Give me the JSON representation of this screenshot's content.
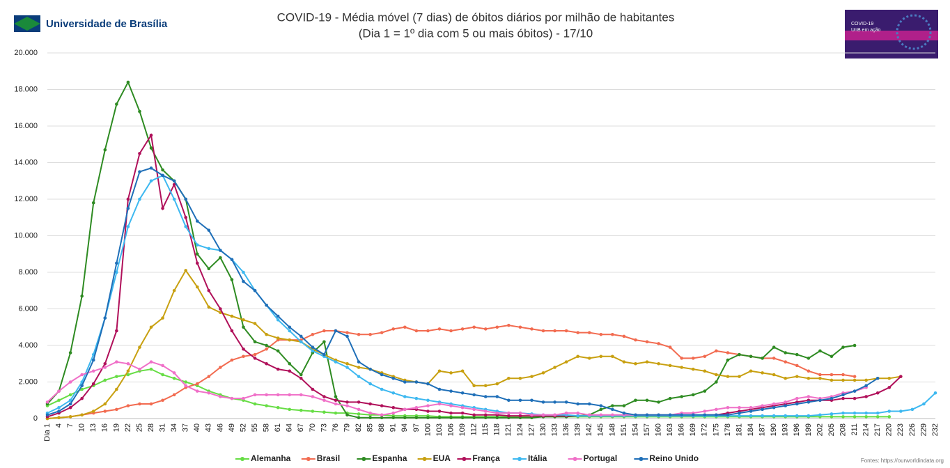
{
  "chart_data": {
    "type": "line",
    "title": "COVID-19 - Média móvel (7 dias) de óbitos diários por milhão de habitantes",
    "subtitle": "(Dia 1 = 1º dia com 5 ou mais óbitos) - 17/10",
    "logo_text": "Universidade de Brasília",
    "badge": [
      "COVID-19",
      "UnB em ação"
    ],
    "source": "Fontes: https://ourworldindata.org",
    "categories": [
      "Dia 1",
      "4",
      "7",
      "10",
      "13",
      "16",
      "19",
      "22",
      "25",
      "28",
      "31",
      "34",
      "37",
      "40",
      "43",
      "46",
      "49",
      "52",
      "55",
      "58",
      "61",
      "64",
      "67",
      "70",
      "73",
      "76",
      "79",
      "82",
      "85",
      "88",
      "91",
      "94",
      "97",
      "100",
      "103",
      "106",
      "109",
      "112",
      "115",
      "118",
      "121",
      "124",
      "127",
      "130",
      "133",
      "136",
      "139",
      "142",
      "145",
      "148",
      "151",
      "154",
      "157",
      "160",
      "163",
      "166",
      "169",
      "172",
      "175",
      "178",
      "181",
      "184",
      "187",
      "190",
      "193",
      "196",
      "199",
      "202",
      "205",
      "208",
      "211",
      "214",
      "217",
      "220",
      "223",
      "226",
      "229",
      "232"
    ],
    "ylim": [
      0,
      20000
    ],
    "yticks": [
      0,
      {
        "value": 2000,
        "label": "2.000"
      },
      {
        "value": 4000,
        "label": "4.000"
      },
      {
        "value": 6000,
        "label": "6.000"
      },
      {
        "value": 8000,
        "label": "8.000"
      },
      {
        "value": 10000,
        "label": "10.000"
      },
      {
        "value": 12000,
        "label": "12.000"
      },
      {
        "value": 14000,
        "label": "14.000"
      },
      {
        "value": 16000,
        "label": "16.000"
      },
      {
        "value": 18000,
        "label": "18.000"
      },
      {
        "value": 20000,
        "label": "20.000"
      }
    ],
    "grid": true,
    "legend": "bottom",
    "series": [
      {
        "name": "Alemanha",
        "color": "#66dd44",
        "values": [
          700,
          1000,
          1300,
          1600,
          1800,
          2100,
          2300,
          2400,
          2600,
          2700,
          2400,
          2200,
          2000,
          1800,
          1500,
          1300,
          1100,
          1000,
          800,
          700,
          600,
          500,
          450,
          400,
          350,
          300,
          300,
          250,
          200,
          200,
          150,
          150,
          150,
          150,
          100,
          100,
          100,
          100,
          100,
          100,
          100,
          100,
          100,
          100,
          100,
          100,
          100,
          100,
          100,
          100,
          100,
          100,
          100,
          100,
          100,
          100,
          100,
          100,
          100,
          100,
          100,
          100,
          100,
          100,
          100,
          100,
          100,
          100,
          100,
          100,
          100,
          100,
          100,
          100,
          null,
          null,
          null,
          null
        ]
      },
      {
        "name": "Brasil",
        "color": "#f26b50",
        "values": [
          0,
          50,
          100,
          200,
          300,
          400,
          500,
          700,
          800,
          800,
          1000,
          1300,
          1700,
          1900,
          2300,
          2800,
          3200,
          3400,
          3500,
          3800,
          4300,
          4300,
          4300,
          4600,
          4800,
          4800,
          4700,
          4600,
          4600,
          4700,
          4900,
          5000,
          4800,
          4800,
          4900,
          4800,
          4900,
          5000,
          4900,
          5000,
          5100,
          5000,
          4900,
          4800,
          4800,
          4800,
          4700,
          4700,
          4600,
          4600,
          4500,
          4300,
          4200,
          4100,
          3900,
          3300,
          3300,
          3400,
          3700,
          3600,
          3500,
          3400,
          3300,
          3300,
          3100,
          2900,
          2600,
          2400,
          2400,
          2400,
          2300,
          null,
          null,
          null,
          null,
          null,
          null,
          null
        ]
      },
      {
        "name": "Espanha",
        "color": "#2e8b22",
        "values": [
          800,
          1500,
          3600,
          6700,
          11800,
          14700,
          17200,
          18400,
          16800,
          14800,
          13600,
          13000,
          12000,
          9000,
          8200,
          8800,
          7600,
          5000,
          4200,
          4000,
          3700,
          3000,
          2400,
          3600,
          4200,
          1200,
          200,
          50,
          50,
          50,
          50,
          50,
          50,
          50,
          50,
          50,
          50,
          50,
          50,
          50,
          50,
          50,
          50,
          100,
          100,
          100,
          150,
          200,
          500,
          700,
          700,
          1000,
          1000,
          900,
          1100,
          1200,
          1300,
          1500,
          2000,
          3200,
          3500,
          3400,
          3300,
          3900,
          3600,
          3500,
          3300,
          3700,
          3400,
          3900,
          4000,
          null,
          null,
          null,
          null,
          null,
          null,
          null
        ]
      },
      {
        "name": "EUA",
        "color": "#c8a010",
        "values": [
          0,
          50,
          100,
          200,
          400,
          800,
          1600,
          2600,
          3900,
          5000,
          5500,
          7000,
          8100,
          7200,
          6100,
          5800,
          5600,
          5400,
          5200,
          4600,
          4400,
          4300,
          4200,
          3800,
          3500,
          3200,
          3000,
          2800,
          2700,
          2500,
          2300,
          2100,
          2000,
          1900,
          2600,
          2500,
          2600,
          1800,
          1800,
          1900,
          2200,
          2200,
          2300,
          2500,
          2800,
          3100,
          3400,
          3300,
          3400,
          3400,
          3100,
          3000,
          3100,
          3000,
          2900,
          2800,
          2700,
          2600,
          2400,
          2300,
          2300,
          2600,
          2500,
          2400,
          2200,
          2300,
          2200,
          2200,
          2100,
          2100,
          2100,
          2100,
          2200,
          2200,
          2300,
          null,
          null,
          null
        ]
      },
      {
        "name": "França",
        "color": "#b0105a",
        "values": [
          100,
          300,
          600,
          1100,
          1900,
          3000,
          4800,
          12000,
          14500,
          15500,
          11500,
          12800,
          11000,
          8500,
          7000,
          6000,
          4800,
          3800,
          3300,
          3000,
          2700,
          2600,
          2200,
          1600,
          1200,
          1000,
          900,
          900,
          800,
          700,
          600,
          500,
          500,
          400,
          400,
          300,
          300,
          200,
          200,
          200,
          150,
          150,
          150,
          150,
          150,
          150,
          150,
          150,
          150,
          150,
          150,
          150,
          150,
          150,
          150,
          150,
          150,
          200,
          200,
          300,
          400,
          500,
          600,
          700,
          800,
          900,
          1000,
          1000,
          1000,
          1100,
          1100,
          1200,
          1400,
          1700,
          2300,
          null,
          null,
          null
        ]
      },
      {
        "name": "Itália",
        "color": "#3db8f0",
        "values": [
          300,
          600,
          1000,
          2000,
          3500,
          5500,
          8000,
          10500,
          12000,
          13000,
          13300,
          12000,
          10500,
          9500,
          9300,
          9200,
          8700,
          8000,
          7000,
          6200,
          5400,
          4800,
          4200,
          3700,
          3400,
          3100,
          2800,
          2300,
          1900,
          1600,
          1400,
          1200,
          1100,
          1000,
          900,
          800,
          700,
          600,
          500,
          400,
          300,
          300,
          250,
          200,
          200,
          200,
          150,
          150,
          150,
          150,
          150,
          150,
          150,
          150,
          150,
          150,
          150,
          150,
          150,
          150,
          150,
          150,
          150,
          150,
          150,
          150,
          150,
          200,
          250,
          300,
          300,
          300,
          300,
          400,
          400,
          500,
          800,
          1400
        ]
      },
      {
        "name": "Portugal",
        "color": "#f070c8",
        "values": [
          900,
          1500,
          2000,
          2400,
          2600,
          2800,
          3100,
          3000,
          2700,
          3100,
          2900,
          2500,
          1800,
          1500,
          1400,
          1200,
          1100,
          1100,
          1300,
          1300,
          1300,
          1300,
          1300,
          1200,
          1000,
          800,
          700,
          500,
          300,
          200,
          300,
          500,
          600,
          700,
          800,
          700,
          600,
          500,
          400,
          300,
          300,
          300,
          200,
          200,
          200,
          300,
          300,
          200,
          200,
          200,
          200,
          200,
          200,
          200,
          200,
          300,
          300,
          400,
          500,
          600,
          600,
          600,
          700,
          800,
          900,
          1100,
          1200,
          1100,
          1200,
          1400,
          1500,
          1700,
          null,
          null,
          null,
          null,
          null,
          null
        ]
      },
      {
        "name": "Reino Unido",
        "color": "#1f6fb8",
        "values": [
          200,
          400,
          800,
          1800,
          3200,
          5500,
          8500,
          11500,
          13500,
          13700,
          13300,
          13000,
          12000,
          10800,
          10300,
          9200,
          8700,
          7500,
          7000,
          6200,
          5600,
          5000,
          4500,
          3900,
          3500,
          4800,
          4500,
          3100,
          2700,
          2400,
          2200,
          2000,
          2000,
          1900,
          1600,
          1500,
          1400,
          1300,
          1200,
          1200,
          1000,
          1000,
          1000,
          900,
          900,
          900,
          800,
          800,
          700,
          500,
          300,
          200,
          200,
          200,
          200,
          200,
          200,
          200,
          200,
          200,
          300,
          400,
          500,
          600,
          700,
          800,
          900,
          1000,
          1100,
          1300,
          1500,
          1800,
          2200,
          null,
          null,
          null,
          null,
          null
        ]
      }
    ]
  }
}
